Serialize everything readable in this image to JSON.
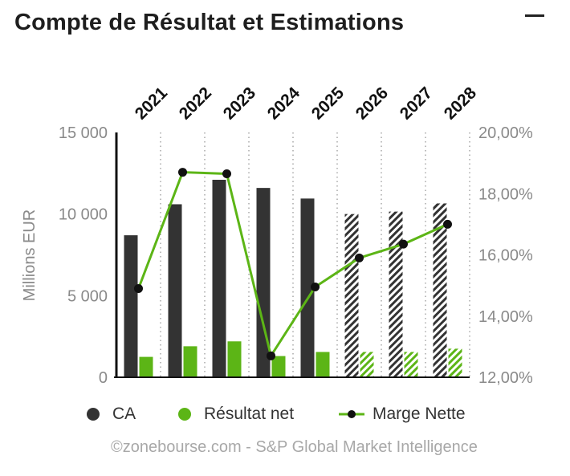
{
  "header": {
    "title": "Compte de Résultat et Estimations"
  },
  "chart_data": {
    "type": "bar",
    "categories": [
      "2021",
      "2022",
      "2023",
      "2024",
      "2025",
      "2026",
      "2027",
      "2028"
    ],
    "estimate_from_index": 5,
    "ylabel": "Millions EUR",
    "ylim": [
      0,
      15000
    ],
    "y_ticks": [
      "0",
      "5 000",
      "10 000",
      "15 000"
    ],
    "y2lim": [
      12,
      20
    ],
    "y2_ticks": [
      "12,00%",
      "14,00%",
      "16,00%",
      "18,00%",
      "20,00%"
    ],
    "series": [
      {
        "name": "CA",
        "type": "bar",
        "color": "#333333",
        "values": [
          8700,
          10600,
          12100,
          11600,
          10950,
          10000,
          10150,
          10650
        ]
      },
      {
        "name": "Résultat net",
        "type": "bar",
        "color": "#5cb516",
        "values": [
          1250,
          1900,
          2200,
          1300,
          1550,
          1550,
          1550,
          1750
        ]
      },
      {
        "name": "Marge Nette",
        "type": "line",
        "axis": "right",
        "color": "#5cb516",
        "values": [
          14.9,
          18.7,
          18.65,
          12.7,
          14.95,
          15.9,
          16.35,
          17.0
        ]
      }
    ],
    "grid": "vertical-dotted",
    "legend_position": "bottom"
  },
  "source": "©zonebourse.com - S&P Global Market Intelligence"
}
